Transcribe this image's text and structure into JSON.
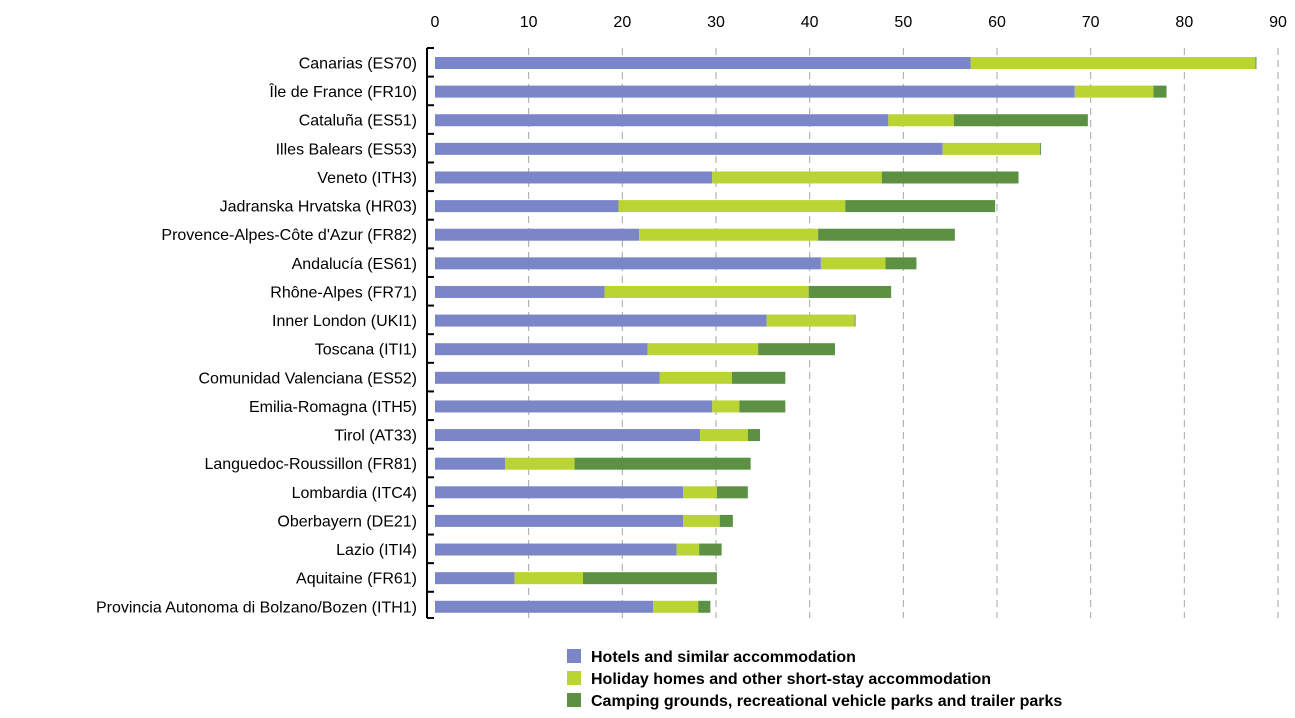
{
  "chart_data": {
    "type": "bar",
    "orientation": "horizontal",
    "stacked": true,
    "title": "",
    "xlabel": "",
    "ylabel": "",
    "xlim": [
      0,
      90
    ],
    "x_ticks": [
      0,
      10,
      20,
      30,
      40,
      50,
      60,
      70,
      80,
      90
    ],
    "x_axis_position": "top",
    "grid": "vertical dashed",
    "legend_position": "bottom-center",
    "categories": [
      "Canarias (ES70)",
      "Île de France (FR10)",
      "Cataluña (ES51)",
      "Illes Balears (ES53)",
      "Veneto (ITH3)",
      "Jadranska Hrvatska (HR03)",
      "Provence-Alpes-Côte d'Azur (FR82)",
      "Andalucía (ES61)",
      "Rhône-Alpes (FR71)",
      "Inner London (UKI1)",
      "Toscana (ITI1)",
      "Comunidad Valenciana (ES52)",
      "Emilia-Romagna (ITH5)",
      "Tirol (AT33)",
      "Languedoc-Roussillon (FR81)",
      "Lombardia (ITC4)",
      "Oberbayern (DE21)",
      "Lazio (ITI4)",
      "Aquitaine (FR61)",
      "Provincia Autonoma di Bolzano/Bozen (ITH1)"
    ],
    "series": [
      {
        "name": "Hotels and similar accommodation",
        "color": "#7b86c9",
        "values": [
          57.2,
          68.3,
          48.4,
          54.2,
          29.6,
          19.6,
          21.8,
          41.2,
          18.1,
          35.4,
          22.7,
          24.0,
          29.6,
          28.3,
          7.5,
          26.5,
          26.5,
          25.8,
          8.5,
          23.3
        ]
      },
      {
        "name": "Holiday homes and other short-stay accommodation",
        "color": "#bad433",
        "values": [
          30.4,
          8.4,
          7.0,
          10.4,
          18.1,
          24.2,
          19.1,
          6.9,
          21.8,
          9.4,
          11.8,
          7.7,
          2.9,
          5.1,
          7.4,
          3.6,
          3.9,
          2.4,
          7.3,
          4.8
        ]
      },
      {
        "name": "Camping grounds, recreational vehicle parks and trailer parks",
        "color": "#5c9144",
        "values": [
          0.1,
          1.4,
          14.3,
          0.1,
          14.6,
          16.0,
          14.6,
          3.3,
          8.8,
          0.1,
          8.2,
          5.7,
          4.9,
          1.3,
          18.8,
          3.3,
          1.4,
          2.4,
          14.3,
          1.3
        ]
      }
    ]
  }
}
